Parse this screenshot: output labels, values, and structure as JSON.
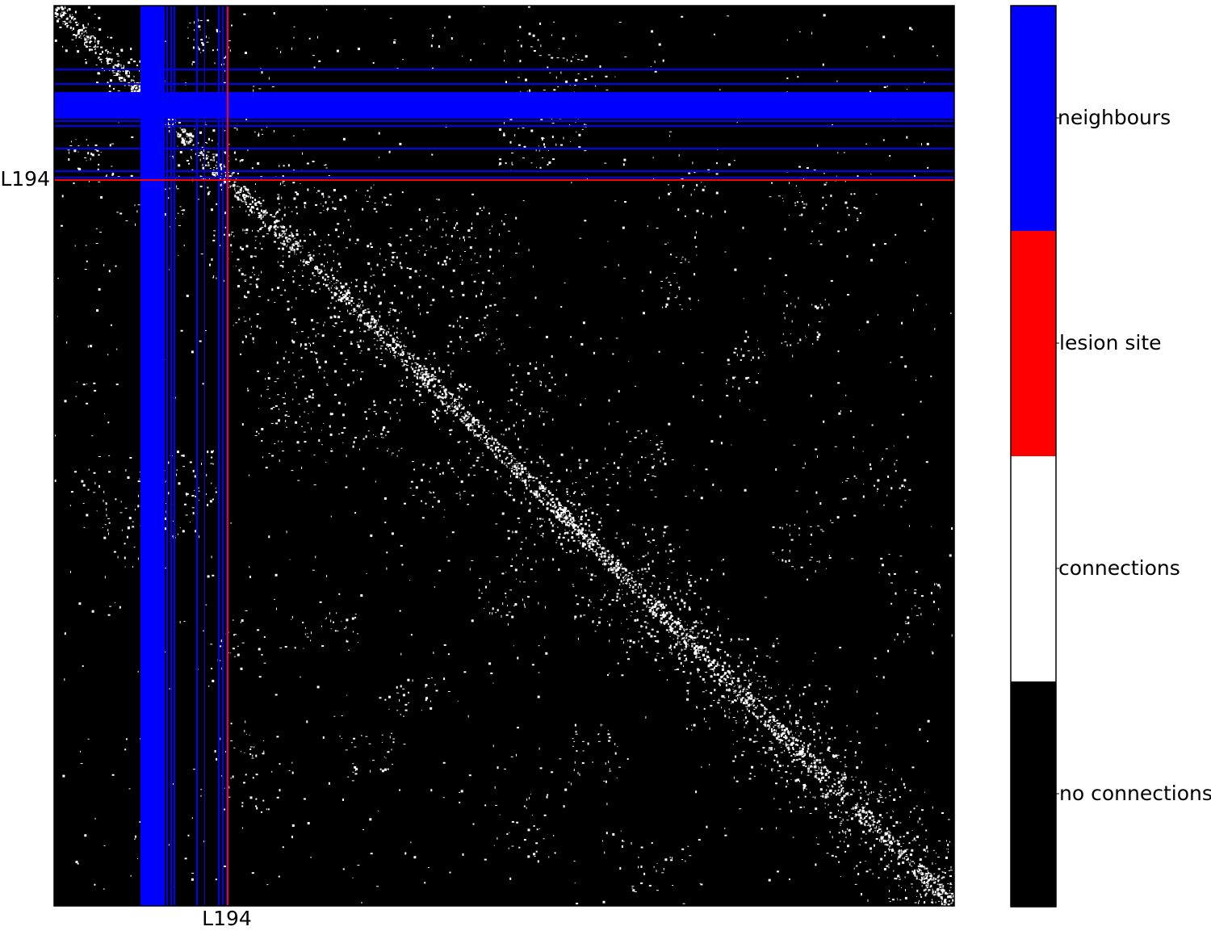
{
  "chart_data": {
    "type": "heatmap",
    "title": "",
    "xlabel": "",
    "ylabel": "",
    "x_tick_labels": [
      "L194"
    ],
    "y_tick_labels": [
      "L194"
    ],
    "lesion_site_label": "L194",
    "colors": {
      "no_connections": "#000000",
      "connections": "#ffffff",
      "lesion_site": "#ff0000",
      "neighbours": "#0000ff"
    },
    "legend": {
      "placement": "right colorbar",
      "entries": [
        "neighbours",
        "lesion site",
        "connections",
        "no connections"
      ]
    }
  }
}
